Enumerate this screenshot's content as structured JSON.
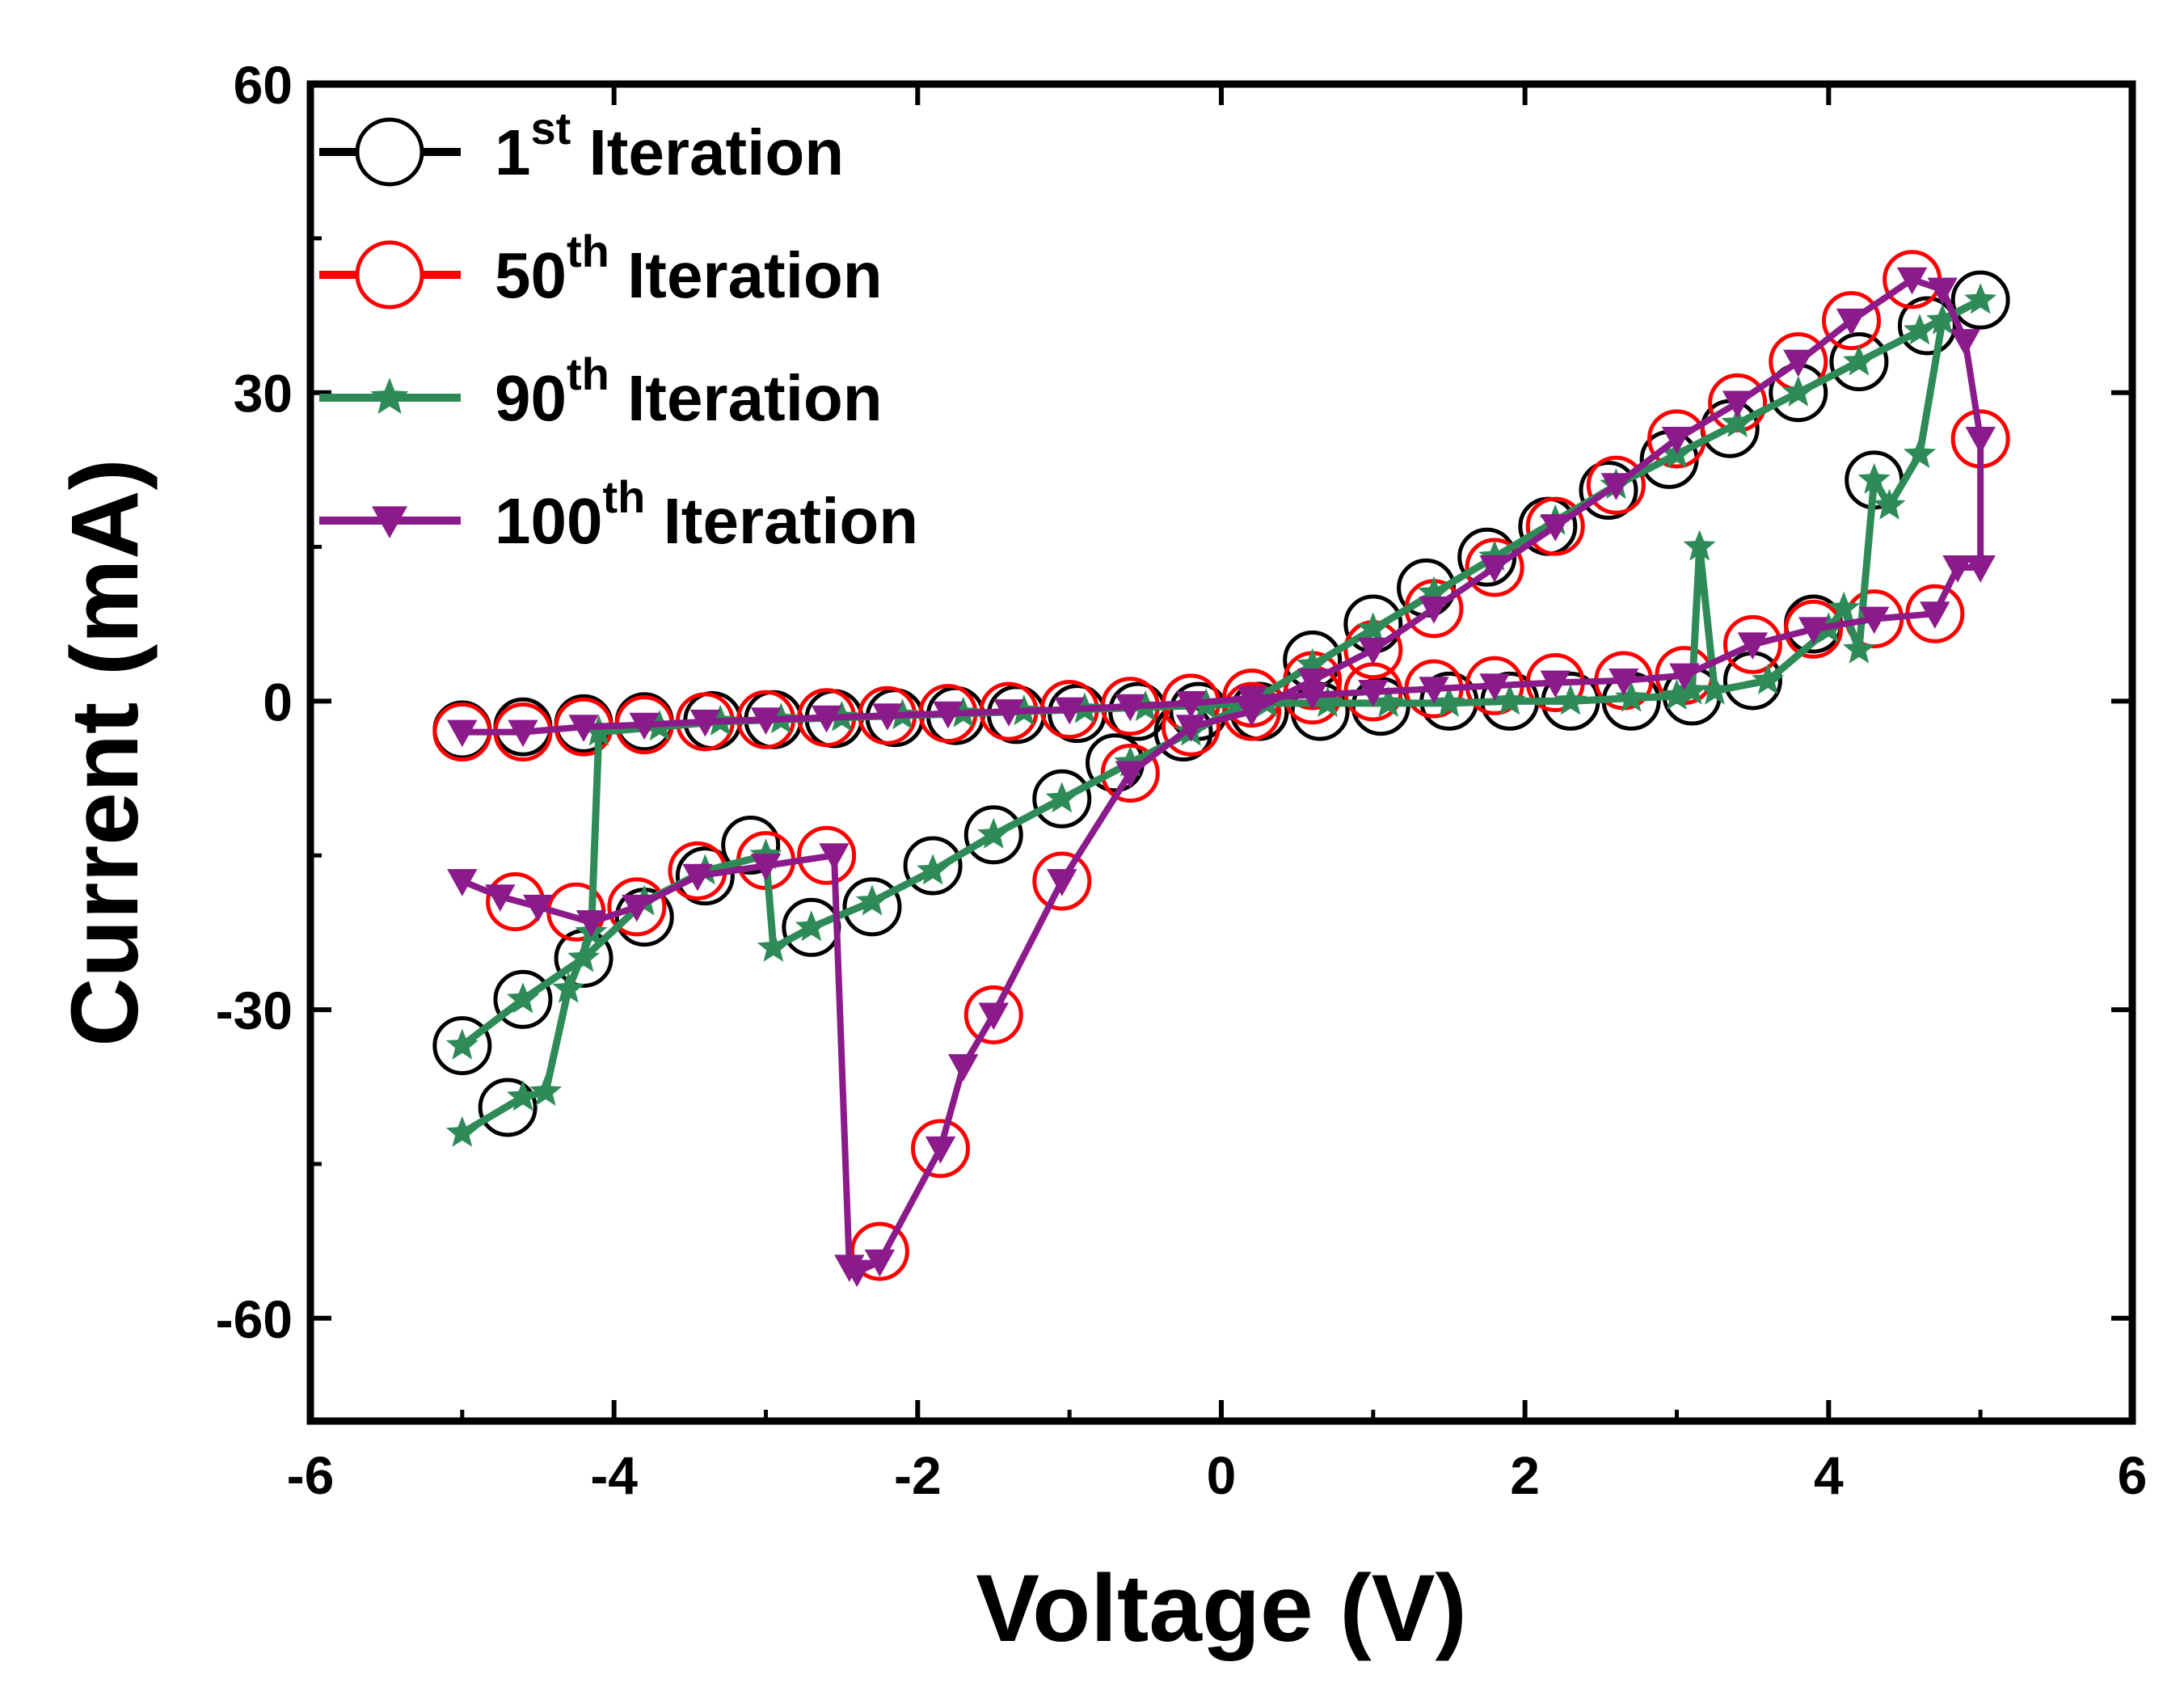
{
  "chart_data": {
    "type": "line",
    "title": "",
    "xlabel": "Voltage (V)",
    "ylabel": "Current (mA)",
    "xlim": [
      -6,
      6
    ],
    "ylim": [
      -70,
      60
    ],
    "xticks": [
      -6,
      -4,
      -2,
      0,
      2,
      4,
      6
    ],
    "yticks": [
      -60,
      -30,
      0,
      30,
      60
    ],
    "x_tick_labels": [
      "-6",
      "-4",
      "-2",
      "0",
      "2",
      "4",
      "6"
    ],
    "y_tick_labels": [
      "-60",
      "-30",
      "0",
      "30",
      "60"
    ],
    "grid": false,
    "legend_position": "top-left",
    "series": [
      {
        "name": "1st Iteration",
        "label_base": "1",
        "label_sup": "st",
        "label_rest": "Iteration",
        "color": "#000000",
        "marker": "open-circle",
        "points": [
          [
            -5.0,
            -33.5
          ],
          [
            -4.6,
            -29
          ],
          [
            -4.2,
            -25
          ],
          [
            -3.8,
            -21
          ],
          [
            -3.4,
            -17
          ],
          [
            -3.1,
            -14
          ],
          [
            -2.7,
            -22
          ],
          [
            -2.3,
            -20
          ],
          [
            -1.9,
            -16
          ],
          [
            -1.5,
            -13
          ],
          [
            -1.05,
            -9.5
          ],
          [
            -0.7,
            -6
          ],
          [
            -0.25,
            -3
          ],
          [
            0.25,
            -1
          ],
          [
            0.6,
            4
          ],
          [
            1.0,
            7.5
          ],
          [
            1.35,
            11
          ],
          [
            1.75,
            14
          ],
          [
            2.15,
            17
          ],
          [
            2.55,
            20.5
          ],
          [
            2.95,
            23.5
          ],
          [
            3.35,
            26.5
          ],
          [
            3.8,
            30
          ],
          [
            4.2,
            33
          ],
          [
            4.65,
            36.5
          ],
          [
            5.0,
            39
          ],
          [
            4.3,
            21.5
          ],
          [
            3.9,
            7.5
          ],
          [
            3.5,
            2
          ],
          [
            3.1,
            0.5
          ],
          [
            2.7,
            0
          ],
          [
            2.3,
            0
          ],
          [
            1.9,
            0
          ],
          [
            1.5,
            0
          ],
          [
            1.05,
            -0.5
          ],
          [
            0.65,
            -1
          ],
          [
            0.25,
            -1
          ],
          [
            -0.15,
            -1
          ],
          [
            -0.55,
            -1
          ],
          [
            -0.95,
            -1.2
          ],
          [
            -1.35,
            -1.3
          ],
          [
            -1.75,
            -1.4
          ],
          [
            -2.15,
            -1.6
          ],
          [
            -2.55,
            -1.7
          ],
          [
            -2.95,
            -1.8
          ],
          [
            -3.35,
            -1.9
          ],
          [
            -3.8,
            -2
          ],
          [
            -4.2,
            -2.2
          ],
          [
            -4.6,
            -2.5
          ],
          [
            -5.0,
            -2.8
          ],
          [
            -4.7,
            -39.5
          ]
        ]
      },
      {
        "name": "50th Iteration",
        "label_base": "50",
        "label_sup": "th",
        "label_rest": "Iteration",
        "color": "#ff0000",
        "marker": "open-circle",
        "points": [
          [
            -5.0,
            -3
          ],
          [
            -4.6,
            -3
          ],
          [
            -4.2,
            -2.5
          ],
          [
            -3.8,
            -2.3
          ],
          [
            -3.4,
            -2
          ],
          [
            -3.0,
            -1.8
          ],
          [
            -2.6,
            -1.6
          ],
          [
            -2.2,
            -1.4
          ],
          [
            -1.8,
            -1.2
          ],
          [
            -1.4,
            -1
          ],
          [
            -1.0,
            -0.8
          ],
          [
            -0.6,
            -0.5
          ],
          [
            -0.2,
            -0.2
          ],
          [
            0.2,
            0.3
          ],
          [
            0.6,
            0.6
          ],
          [
            1.0,
            0.9
          ],
          [
            1.4,
            1.2
          ],
          [
            1.8,
            1.5
          ],
          [
            2.2,
            1.8
          ],
          [
            2.65,
            2
          ],
          [
            3.05,
            2.5
          ],
          [
            3.5,
            5.5
          ],
          [
            3.9,
            7
          ],
          [
            4.3,
            8
          ],
          [
            4.7,
            8.5
          ],
          [
            5.0,
            25.5
          ],
          [
            4.55,
            41
          ],
          [
            4.15,
            37
          ],
          [
            3.8,
            33
          ],
          [
            3.4,
            29
          ],
          [
            3.0,
            25.5
          ],
          [
            2.6,
            21
          ],
          [
            2.2,
            17
          ],
          [
            1.8,
            13
          ],
          [
            1.4,
            9
          ],
          [
            1.0,
            5
          ],
          [
            0.6,
            2
          ],
          [
            0.2,
            -1
          ],
          [
            -0.2,
            -2.5
          ],
          [
            -0.6,
            -7
          ],
          [
            -1.05,
            -17.5
          ],
          [
            -1.5,
            -30.5
          ],
          [
            -1.85,
            -43.5
          ],
          [
            -2.25,
            -53.5
          ],
          [
            -2.6,
            -15
          ],
          [
            -3.0,
            -15.5
          ],
          [
            -3.45,
            -16.5
          ],
          [
            -3.85,
            -20
          ],
          [
            -4.25,
            -20.5
          ],
          [
            -4.65,
            -19.5
          ]
        ]
      },
      {
        "name": "90th Iteration",
        "label_base": "90",
        "label_sup": "th",
        "label_rest": "Iteration",
        "color": "#2e8b57",
        "marker": "filled-star",
        "points": [
          [
            -5.0,
            -42
          ],
          [
            -4.6,
            -38.5
          ],
          [
            -4.45,
            -38
          ],
          [
            -4.3,
            -28
          ],
          [
            -4.15,
            -22.5
          ],
          [
            -4.1,
            -3
          ],
          [
            -3.7,
            -2.5
          ],
          [
            -3.3,
            -2
          ],
          [
            -2.9,
            -1.8
          ],
          [
            -2.5,
            -1.6
          ],
          [
            -2.1,
            -1.4
          ],
          [
            -1.7,
            -1.2
          ],
          [
            -1.3,
            -1
          ],
          [
            -0.9,
            -0.8
          ],
          [
            -0.5,
            -0.6
          ],
          [
            -0.1,
            -0.4
          ],
          [
            0.3,
            -0.2
          ],
          [
            0.7,
            -0.2
          ],
          [
            1.1,
            -0.2
          ],
          [
            1.5,
            -0.2
          ],
          [
            1.9,
            0
          ],
          [
            2.3,
            0
          ],
          [
            2.7,
            0.3
          ],
          [
            3.0,
            0.5
          ],
          [
            3.1,
            1
          ],
          [
            3.15,
            15
          ],
          [
            3.25,
            1
          ],
          [
            3.6,
            2
          ],
          [
            4.0,
            7
          ],
          [
            4.1,
            9
          ],
          [
            4.2,
            5
          ],
          [
            4.3,
            21.5
          ],
          [
            4.4,
            19
          ],
          [
            4.6,
            24
          ],
          [
            4.75,
            37
          ],
          [
            5.0,
            39
          ],
          [
            4.6,
            36
          ],
          [
            4.2,
            33
          ],
          [
            3.8,
            30
          ],
          [
            3.4,
            27
          ],
          [
            3.0,
            24
          ],
          [
            2.6,
            21
          ],
          [
            2.2,
            17.5
          ],
          [
            1.8,
            14
          ],
          [
            1.4,
            10.5
          ],
          [
            1.0,
            7
          ],
          [
            0.6,
            3.5
          ],
          [
            0.2,
            0
          ],
          [
            -0.2,
            -3
          ],
          [
            -0.6,
            -6
          ],
          [
            -1.05,
            -9.5
          ],
          [
            -1.5,
            -13
          ],
          [
            -1.9,
            -16.5
          ],
          [
            -2.3,
            -19.5
          ],
          [
            -2.7,
            -22
          ],
          [
            -2.95,
            -24
          ],
          [
            -3.0,
            -15
          ],
          [
            -3.4,
            -16.5
          ],
          [
            -3.8,
            -19.5
          ],
          [
            -4.2,
            -25
          ],
          [
            -4.6,
            -29
          ],
          [
            -5.0,
            -33.5
          ]
        ]
      },
      {
        "name": "100th Iteration",
        "label_base": "100",
        "label_sup": "th",
        "label_rest": "Iteration",
        "color": "#8b1a8b",
        "marker": "filled-triangle-down",
        "points": [
          [
            -5.0,
            -3
          ],
          [
            -4.6,
            -3
          ],
          [
            -4.2,
            -2.5
          ],
          [
            -3.8,
            -2.3
          ],
          [
            -3.4,
            -2
          ],
          [
            -3.0,
            -1.8
          ],
          [
            -2.6,
            -1.6
          ],
          [
            -2.2,
            -1.4
          ],
          [
            -1.8,
            -1.2
          ],
          [
            -1.4,
            -1
          ],
          [
            -1.0,
            -0.8
          ],
          [
            -0.6,
            -0.5
          ],
          [
            -0.2,
            -0.2
          ],
          [
            0.2,
            0.3
          ],
          [
            0.6,
            0.6
          ],
          [
            1.0,
            0.9
          ],
          [
            1.4,
            1.2
          ],
          [
            1.8,
            1.5
          ],
          [
            2.2,
            1.8
          ],
          [
            2.65,
            2
          ],
          [
            3.05,
            2.5
          ],
          [
            3.5,
            5.5
          ],
          [
            3.9,
            7
          ],
          [
            4.3,
            8
          ],
          [
            4.7,
            8.5
          ],
          [
            4.85,
            13
          ],
          [
            5.0,
            13
          ],
          [
            5.0,
            25.5
          ],
          [
            4.9,
            35
          ],
          [
            4.75,
            40
          ],
          [
            4.55,
            41
          ],
          [
            4.15,
            37
          ],
          [
            3.8,
            33
          ],
          [
            3.4,
            29
          ],
          [
            3.0,
            25.5
          ],
          [
            2.6,
            21
          ],
          [
            2.2,
            17
          ],
          [
            1.8,
            13
          ],
          [
            1.4,
            9
          ],
          [
            1.0,
            5
          ],
          [
            0.6,
            2
          ],
          [
            0.2,
            -1
          ],
          [
            -0.2,
            -2.5
          ],
          [
            -0.6,
            -7
          ],
          [
            -1.05,
            -17.5
          ],
          [
            -1.5,
            -30.5
          ],
          [
            -1.7,
            -35.5
          ],
          [
            -1.85,
            -43.5
          ],
          [
            -2.25,
            -54.5
          ],
          [
            -2.4,
            -55.5
          ],
          [
            -2.45,
            -55
          ],
          [
            -2.55,
            -15
          ],
          [
            -3.0,
            -16
          ],
          [
            -3.45,
            -17
          ],
          [
            -3.85,
            -20
          ],
          [
            -4.15,
            -21.5
          ],
          [
            -4.5,
            -20
          ],
          [
            -4.75,
            -19
          ],
          [
            -5.0,
            -17.5
          ]
        ]
      }
    ]
  }
}
